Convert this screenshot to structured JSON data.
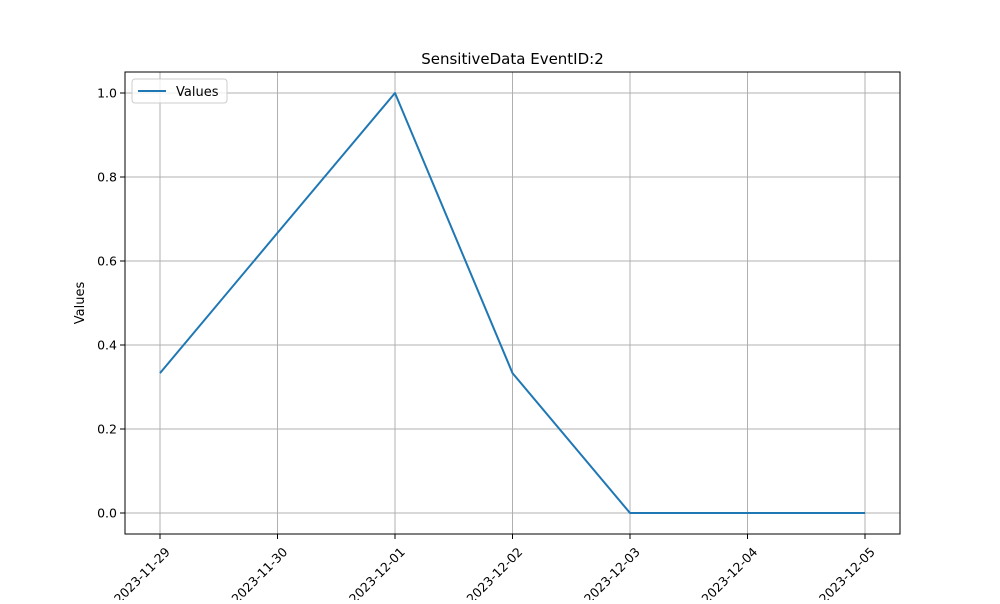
{
  "chart_data": {
    "type": "line",
    "title": "SensitiveData EventID:2",
    "xlabel": "",
    "ylabel": "Values",
    "x": [
      "2023-11-29",
      "2023-11-30",
      "2023-12-01",
      "2023-12-02",
      "2023-12-03",
      "2023-12-04",
      "2023-12-05"
    ],
    "x_ticks": [
      "2023-11-29",
      "2023-11-30",
      "2023-12-01",
      "2023-12-02",
      "2023-12-03",
      "2023-12-04",
      "2023-12-05"
    ],
    "series": [
      {
        "name": "Values",
        "color": "#1f77b4",
        "values": [
          0.333,
          0.667,
          1.0,
          0.333,
          0.0,
          0.0,
          0.0
        ]
      }
    ],
    "yticks": [
      "0.0",
      "0.2",
      "0.4",
      "0.6",
      "0.8",
      "1.0"
    ],
    "ylim": [
      -0.05,
      1.05
    ],
    "grid": true,
    "legend": "upper-left",
    "xtick_rotation_deg": 45
  }
}
